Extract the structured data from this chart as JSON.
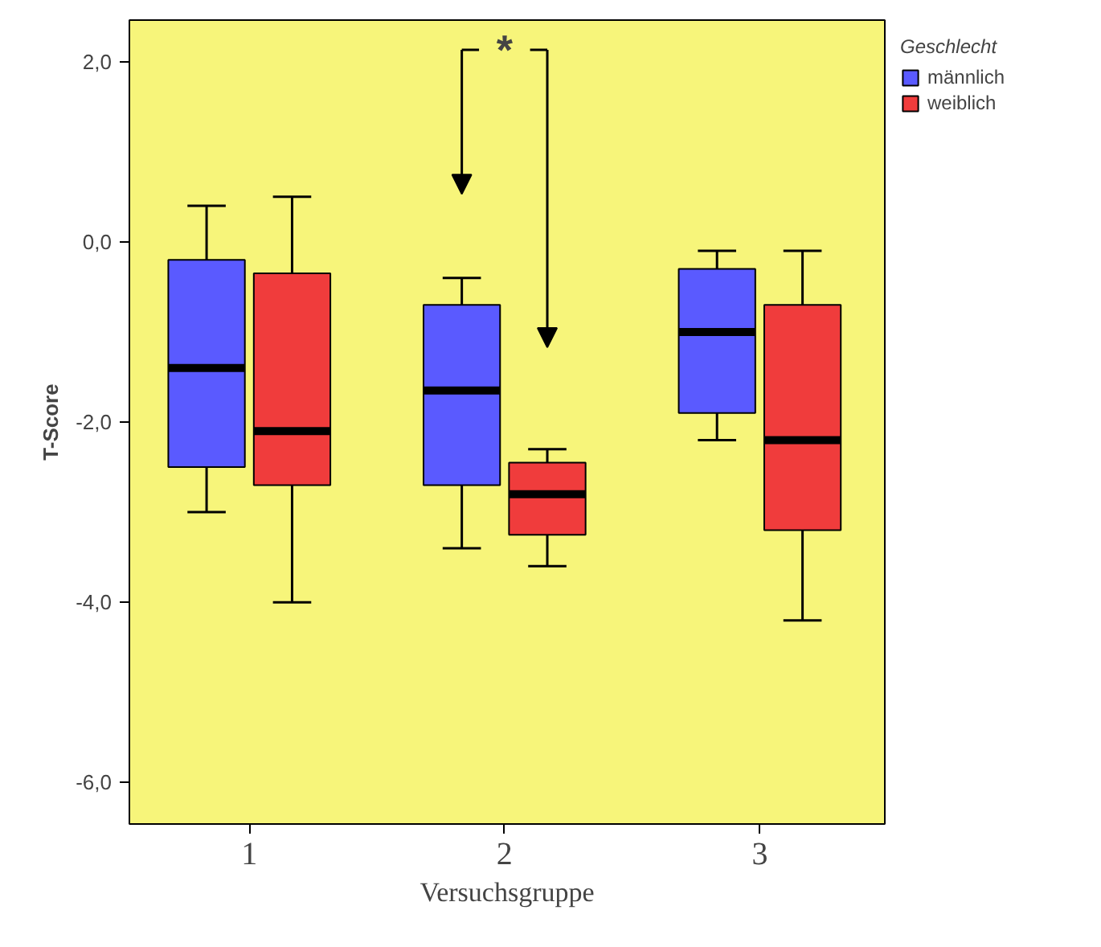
{
  "chart_data": {
    "type": "box",
    "xlabel": "Versuchsgruppe",
    "ylabel": "T-Score",
    "legend_title": "Geschlecht",
    "legend": "top right",
    "grid": false,
    "categories": [
      "1",
      "2",
      "3"
    ],
    "ylim": [
      -6.46,
      2.46
    ],
    "yticks": [
      {
        "value": -6,
        "label": "-6,0"
      },
      {
        "value": -4,
        "label": "-4,0"
      },
      {
        "value": -2,
        "label": "-2,0"
      },
      {
        "value": 0,
        "label": "0,0"
      },
      {
        "value": 2,
        "label": "2,0"
      }
    ],
    "annotations": [
      "*"
    ],
    "series": [
      {
        "name": "männlich",
        "color": "#5a5aff",
        "boxes": [
          {
            "low": -3.0,
            "q1": -2.5,
            "median": -1.4,
            "q3": -0.2,
            "high": 0.4
          },
          {
            "low": -3.4,
            "q1": -2.7,
            "median": -1.65,
            "q3": -0.7,
            "high": -0.4
          },
          {
            "low": -2.2,
            "q1": -1.9,
            "median": -1.0,
            "q3": -0.3,
            "high": -0.1
          }
        ]
      },
      {
        "name": "weiblich",
        "color": "#f03c3c",
        "boxes": [
          {
            "low": -4.0,
            "q1": -2.7,
            "median": -2.1,
            "q3": -0.35,
            "high": 0.5
          },
          {
            "low": -3.6,
            "q1": -3.25,
            "median": -2.8,
            "q3": -2.45,
            "high": -2.3
          },
          {
            "low": -4.2,
            "q1": -3.2,
            "median": -2.2,
            "q3": -0.7,
            "high": -0.1
          }
        ]
      }
    ]
  }
}
